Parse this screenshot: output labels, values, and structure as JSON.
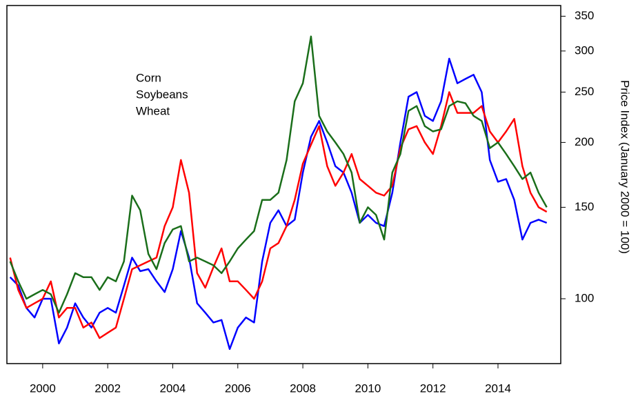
{
  "chart_data": {
    "type": "line",
    "y_label": "Price Index (January 2000 = 100)",
    "log_y": true,
    "y_axis_side": "right",
    "legend": "upper left",
    "xlim": [
      1998.9,
      2015.93
    ],
    "xticks": [
      2000,
      2002,
      2004,
      2006,
      2008,
      2010,
      2012,
      2014
    ],
    "ylim": [
      75,
      367
    ],
    "yticks": [
      100,
      150,
      200,
      250,
      300,
      350
    ],
    "x": [
      1999,
      1999.25,
      1999.5,
      1999.75,
      2000,
      2000.25,
      2000.5,
      2000.75,
      2001,
      2001.25,
      2001.5,
      2001.75,
      2002,
      2002.25,
      2002.5,
      2002.75,
      2003,
      2003.25,
      2003.5,
      2003.75,
      2004,
      2004.25,
      2004.5,
      2004.75,
      2005,
      2005.25,
      2005.5,
      2005.75,
      2006,
      2006.25,
      2006.5,
      2006.75,
      2007,
      2007.25,
      2007.5,
      2007.75,
      2008,
      2008.25,
      2008.5,
      2008.75,
      2009,
      2009.25,
      2009.5,
      2009.75,
      2010,
      2010.25,
      2010.5,
      2010.75,
      2011,
      2011.25,
      2011.5,
      2011.75,
      2012,
      2012.25,
      2012.5,
      2012.75,
      2013,
      2013.25,
      2013.5,
      2013.75,
      2014,
      2014.25,
      2014.5,
      2014.75,
      2015,
      2015.25,
      2015.5
    ],
    "series": [
      {
        "name": "Corn",
        "color": "#0000ff",
        "values": [
          110,
          106,
          96,
          92,
          100,
          100,
          82,
          88,
          98,
          92,
          88,
          94,
          96,
          94,
          106,
          120,
          113,
          114,
          108,
          103,
          114,
          135,
          120,
          98,
          94,
          90,
          91,
          80,
          88,
          92,
          90,
          118,
          140,
          148,
          138,
          142,
          175,
          205,
          220,
          200,
          180,
          175,
          160,
          140,
          145,
          140,
          138,
          160,
          200,
          245,
          250,
          225,
          220,
          240,
          290,
          260,
          265,
          270,
          250,
          185,
          168,
          170,
          155,
          130,
          140,
          142,
          140
        ]
      },
      {
        "name": "Soybeans",
        "color": "#ff0000",
        "values": [
          120,
          104,
          96,
          98,
          100,
          108,
          92,
          96,
          96,
          88,
          90,
          84,
          86,
          88,
          100,
          114,
          116,
          118,
          120,
          138,
          150,
          185,
          160,
          112,
          105,
          115,
          125,
          108,
          108,
          104,
          100,
          108,
          125,
          128,
          138,
          155,
          182,
          198,
          215,
          180,
          165,
          175,
          190,
          170,
          165,
          160,
          158,
          165,
          195,
          212,
          215,
          200,
          190,
          215,
          250,
          228,
          228,
          228,
          235,
          210,
          200,
          210,
          222,
          180,
          160,
          150,
          147
        ]
      },
      {
        "name": "Wheat",
        "color": "#1a6e1a",
        "values": [
          118,
          108,
          100,
          102,
          104,
          102,
          94,
          102,
          112,
          110,
          110,
          104,
          110,
          108,
          118,
          158,
          148,
          122,
          114,
          128,
          136,
          138,
          118,
          120,
          118,
          116,
          112,
          118,
          125,
          130,
          135,
          155,
          155,
          160,
          185,
          240,
          260,
          320,
          225,
          210,
          200,
          190,
          175,
          140,
          150,
          145,
          130,
          175,
          190,
          230,
          235,
          215,
          210,
          212,
          235,
          240,
          238,
          225,
          220,
          195,
          200,
          190,
          180,
          170,
          175,
          160,
          150
        ]
      }
    ]
  }
}
